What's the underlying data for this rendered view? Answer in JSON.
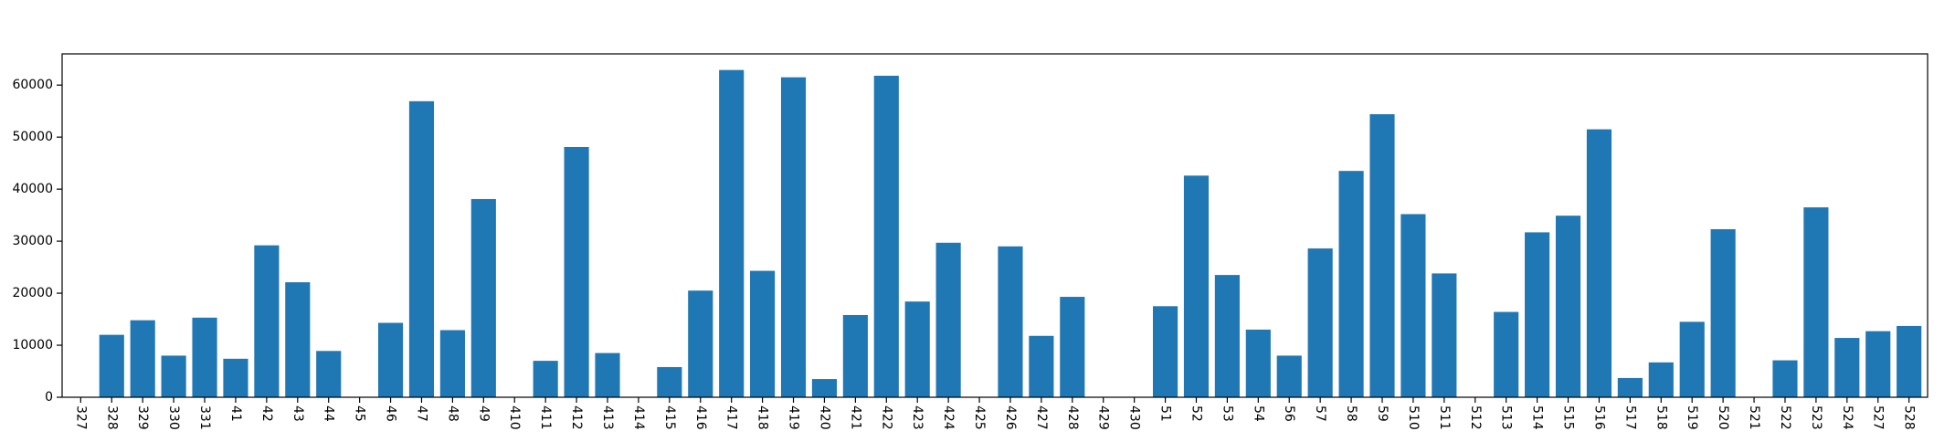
{
  "chart_data": {
    "type": "bar",
    "title": "",
    "xlabel": "",
    "ylabel": "",
    "ylim": [
      0,
      66000
    ],
    "yticks": [
      0,
      10000,
      20000,
      30000,
      40000,
      50000,
      60000
    ],
    "grid": false,
    "legend": "none",
    "bar_color": "#1f77b4",
    "categories": [
      "327",
      "328",
      "329",
      "330",
      "331",
      "41",
      "42",
      "43",
      "44",
      "45",
      "46",
      "47",
      "48",
      "49",
      "410",
      "411",
      "412",
      "413",
      "414",
      "415",
      "416",
      "417",
      "418",
      "419",
      "420",
      "421",
      "422",
      "423",
      "424",
      "425",
      "426",
      "427",
      "428",
      "429",
      "430",
      "51",
      "52",
      "53",
      "54",
      "56",
      "57",
      "58",
      "59",
      "510",
      "511",
      "512",
      "513",
      "514",
      "515",
      "516",
      "517",
      "518",
      "519",
      "520",
      "521",
      "522",
      "523",
      "524",
      "527",
      "528"
    ],
    "values": [
      0,
      12000,
      14800,
      8000,
      15300,
      7400,
      29200,
      22100,
      8900,
      0,
      14300,
      56900,
      12900,
      38100,
      0,
      7000,
      48100,
      8500,
      0,
      5800,
      20500,
      62900,
      24300,
      61500,
      3500,
      15800,
      61800,
      18400,
      29700,
      0,
      29000,
      11800,
      19300,
      0,
      0,
      17500,
      42600,
      23500,
      13000,
      8000,
      28600,
      43500,
      54400,
      35200,
      23800,
      0,
      16400,
      31700,
      34900,
      51500,
      3700,
      6700,
      14500,
      32300,
      0,
      7100,
      36500,
      11400,
      12700,
      13700
    ]
  }
}
